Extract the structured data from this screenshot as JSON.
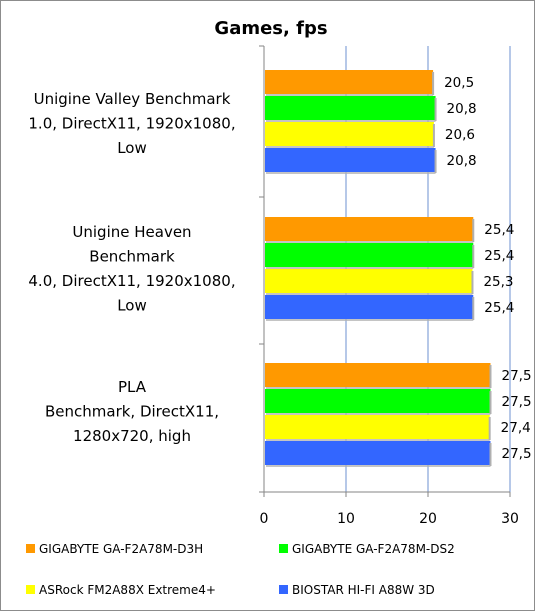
{
  "chart_data": {
    "type": "bar",
    "orientation": "horizontal",
    "title": "Games,  fps",
    "categories": [
      "Unigine Valley Benchmark 1.0, DirectX11, 1920x1080, Low",
      "Unigine Heaven Benchmark 4.0, DirectX11, 1920x1080, Low",
      "PLA Benchmark, DirectX11, 1280x720, high"
    ],
    "category_lines": [
      [
        "Unigine Valley Benchmark",
        "1.0, DirectX11, 1920x1080,",
        "Low"
      ],
      [
        "Unigine Heaven",
        "Benchmark",
        "4.0, DirectX11, 1920x1080,",
        "Low"
      ],
      [
        "PLA",
        "Benchmark, DirectX11,",
        "1280x720, high"
      ]
    ],
    "series": [
      {
        "name": "GIGABYTE GA-F2A78M-D3H",
        "color": "#ff9900",
        "values": [
          20.5,
          25.4,
          27.5
        ],
        "labels": [
          "20,5",
          "25,4",
          "27,5"
        ]
      },
      {
        "name": "GIGABYTE GA-F2A78M-DS2",
        "color": "#00ff00",
        "values": [
          20.8,
          25.4,
          27.5
        ],
        "labels": [
          "20,8",
          "25,4",
          "27,5"
        ]
      },
      {
        "name": "ASRock FM2A88X Extreme4+",
        "color": "#ffff00",
        "values": [
          20.6,
          25.3,
          27.4
        ],
        "labels": [
          "20,6",
          "25,3",
          "27,4"
        ]
      },
      {
        "name": "BIOSTAR HI-FI A88W 3D",
        "color": "#3366ff",
        "values": [
          20.8,
          25.4,
          27.5
        ],
        "labels": [
          "20,8",
          "25,4",
          "27,5"
        ]
      }
    ],
    "xlim": [
      0,
      30
    ],
    "xticks": [
      0,
      10,
      20,
      30
    ],
    "xtick_labels": [
      "0",
      "10",
      "20",
      "30"
    ],
    "grid": true,
    "grid_color": "#8eaadb",
    "legend_position": "bottom"
  }
}
